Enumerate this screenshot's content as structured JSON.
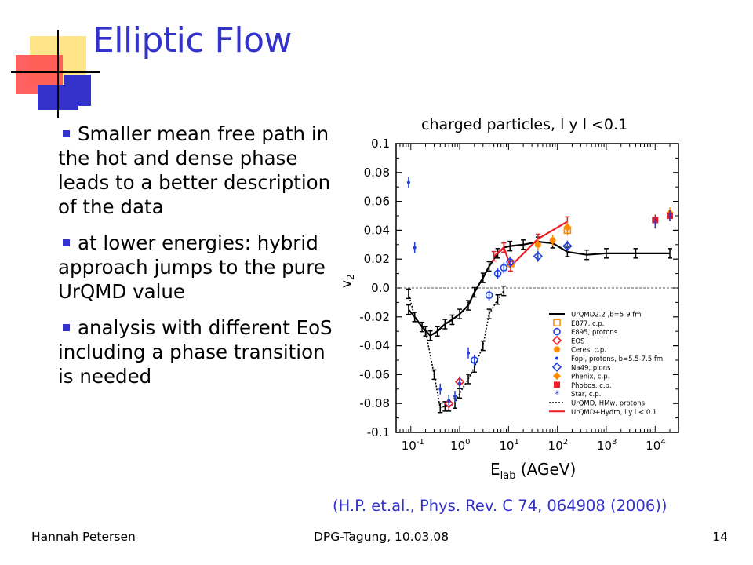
{
  "slide": {
    "title": "Elliptic Flow",
    "bullets": [
      "Smaller mean free path in the hot and dense phase leads to a better description of the data",
      "at lower energies: hybrid approach jumps to the pure UrQMD value",
      "analysis with different EoS including a phase transition is needed"
    ],
    "citation": "(H.P. et.al., Phys. Rev. C 74, 064908 (2006))",
    "footer": {
      "author": "Hannah Petersen",
      "event": "DPG-Tagung, 10.03.08",
      "page": "14"
    },
    "colors": {
      "title": "#3333cc",
      "logo_yellow": "#ffd23c",
      "logo_red": "#ff5050",
      "logo_blue": "#3333cc"
    }
  },
  "chart_data": {
    "type": "line",
    "title": "charged particles, l y l <0.1",
    "xlabel": "E",
    "xlabel_sub": "lab",
    "xlabel_unit": " (AGeV)",
    "ylabel": "v",
    "ylabel_sub": "2",
    "xscale": "log",
    "xlim": [
      0.05,
      30000
    ],
    "ylim": [
      -0.1,
      0.1
    ],
    "x_ticks": [
      {
        "v": 0.1,
        "base": "10",
        "exp": "-1"
      },
      {
        "v": 1,
        "base": "10",
        "exp": "0"
      },
      {
        "v": 10,
        "base": "10",
        "exp": "1"
      },
      {
        "v": 100,
        "base": "10",
        "exp": "2"
      },
      {
        "v": 1000,
        "base": "10",
        "exp": "3"
      },
      {
        "v": 10000,
        "base": "10",
        "exp": "4"
      }
    ],
    "y_ticks": [
      "0.1",
      "0.08",
      "0.06",
      "0.04",
      "0.02",
      "0.0",
      "-0.02",
      "-0.04",
      "-0.06",
      "-0.08",
      "-0.1"
    ],
    "y_tick_values": [
      0.1,
      0.08,
      0.06,
      0.04,
      0.02,
      0.0,
      -0.02,
      -0.04,
      -0.06,
      -0.08,
      -0.1
    ],
    "zero_line": true,
    "legend_position": "bottom-right",
    "series": [
      {
        "name": "UrQMD2.2 ,b=5-9 fm",
        "color": "#000000",
        "style": "line-errorbars",
        "x": [
          0.09,
          0.12,
          0.17,
          0.25,
          0.35,
          0.5,
          0.7,
          1.0,
          1.5,
          2.0,
          3.0,
          4.0,
          6.0,
          8.0,
          10.7,
          20,
          40,
          80,
          160,
          400,
          1000,
          4000,
          20000
        ],
        "y": [
          -0.015,
          -0.02,
          -0.027,
          -0.033,
          -0.03,
          -0.025,
          -0.022,
          -0.018,
          -0.012,
          -0.003,
          0.007,
          0.015,
          0.024,
          0.028,
          0.029,
          0.03,
          0.032,
          0.031,
          0.025,
          0.023,
          0.024,
          0.024,
          0.024
        ]
      },
      {
        "name": "UrQMD, HMw, protons",
        "color": "#000000",
        "style": "dotted-errorbars",
        "x": [
          0.09,
          0.12,
          0.2,
          0.3,
          0.4,
          0.5,
          0.6,
          0.8,
          1.0,
          1.5,
          2.0,
          3.0,
          4.0,
          6.0,
          8.0
        ],
        "y": [
          -0.004,
          -0.02,
          -0.03,
          -0.06,
          -0.083,
          -0.082,
          -0.082,
          -0.08,
          -0.073,
          -0.063,
          -0.055,
          -0.04,
          -0.018,
          -0.008,
          -0.002
        ]
      },
      {
        "name": "UrQMD+Hydro, l y l < 0.1",
        "color": "#ee1c24",
        "style": "line-errorbars",
        "x": [
          5,
          8,
          11,
          40,
          160
        ],
        "y": [
          0.022,
          0.028,
          0.015,
          0.034,
          0.046
        ]
      },
      {
        "name": "E877, c.p.",
        "color": "#ff8c00",
        "marker": "square-open",
        "x": [
          11,
          160
        ],
        "y": [
          0.017,
          0.04
        ]
      },
      {
        "name": "E895, protons",
        "color": "#1f3fe0",
        "marker": "circle-open",
        "x": [
          2,
          4,
          6,
          8,
          10.7
        ],
        "y": [
          -0.05,
          -0.005,
          0.01,
          0.014,
          0.018
        ]
      },
      {
        "name": "EOS",
        "color": "#ee1c24",
        "marker": "diamond-open",
        "x": [
          0.6,
          1.0
        ],
        "y": [
          -0.08,
          -0.065
        ]
      },
      {
        "name": "Ceres, c.p.",
        "color": "#ff8c00",
        "marker": "circle",
        "x": [
          40,
          80,
          160
        ],
        "y": [
          0.03,
          0.033,
          0.042
        ]
      },
      {
        "name": "Fopi, protons, b=5.5-7.5 fm",
        "color": "#1f3fe0",
        "marker": "dot",
        "x": [
          0.09,
          0.12,
          0.4,
          0.6,
          0.8,
          1.0,
          1.5
        ],
        "y": [
          0.073,
          0.028,
          -0.07,
          -0.078,
          -0.075,
          -0.066,
          -0.045
        ]
      },
      {
        "name": "Na49, pions",
        "color": "#1f3fe0",
        "marker": "diamond-open",
        "x": [
          40,
          160
        ],
        "y": [
          0.022,
          0.029
        ]
      },
      {
        "name": "Phenix, c.p.",
        "color": "#ff8c00",
        "marker": "diamond",
        "x": [
          20000
        ],
        "y": [
          0.052
        ]
      },
      {
        "name": "Phobos, c.p.",
        "color": "#ee1c24",
        "marker": "square",
        "x": [
          10000,
          20000
        ],
        "y": [
          0.047,
          0.05
        ]
      },
      {
        "name": "Star, c.p.",
        "color": "#1f3fe0",
        "marker": "star",
        "x": [
          10000,
          20000
        ],
        "y": [
          0.045,
          0.05
        ]
      }
    ]
  }
}
